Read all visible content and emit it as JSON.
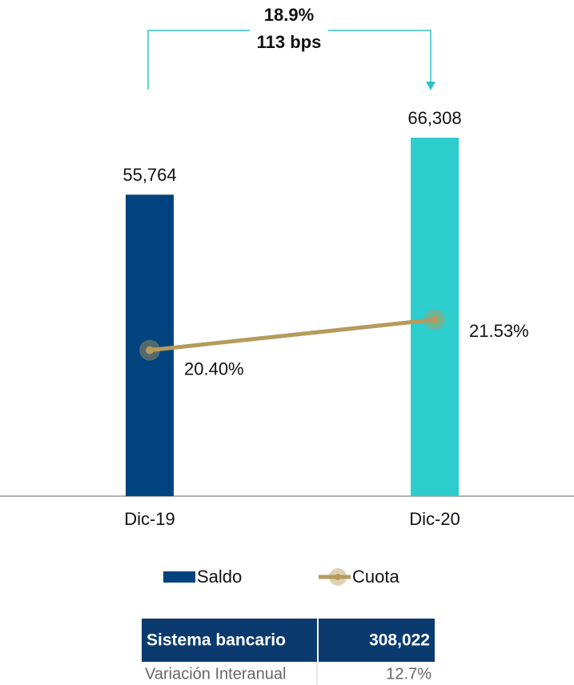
{
  "chart_data": {
    "type": "bar",
    "categories": [
      "Dic-19",
      "Dic-20"
    ],
    "series": [
      {
        "name": "Saldo",
        "type": "bar",
        "color": "#00437f",
        "colors": [
          "#00437f",
          "#2dcccd"
        ],
        "values": [
          55764,
          66308
        ],
        "value_labels": [
          "55,764",
          "66,308"
        ]
      },
      {
        "name": "Cuota",
        "type": "line",
        "axis": "y2",
        "color": "#b59b5c",
        "values": [
          20.4,
          21.53
        ],
        "value_labels": [
          "20.40%",
          "21.53%"
        ]
      }
    ],
    "ylim": [
      0,
      90000
    ],
    "y2lim": [
      15,
      33
    ],
    "annotations": [
      "18.9%",
      "113 bps"
    ],
    "annotation_color": "#2dc4c8"
  },
  "table": {
    "rows": [
      [
        "Sistema bancario",
        "308,022"
      ],
      [
        "Variación Interanual",
        "12.7%"
      ]
    ]
  }
}
